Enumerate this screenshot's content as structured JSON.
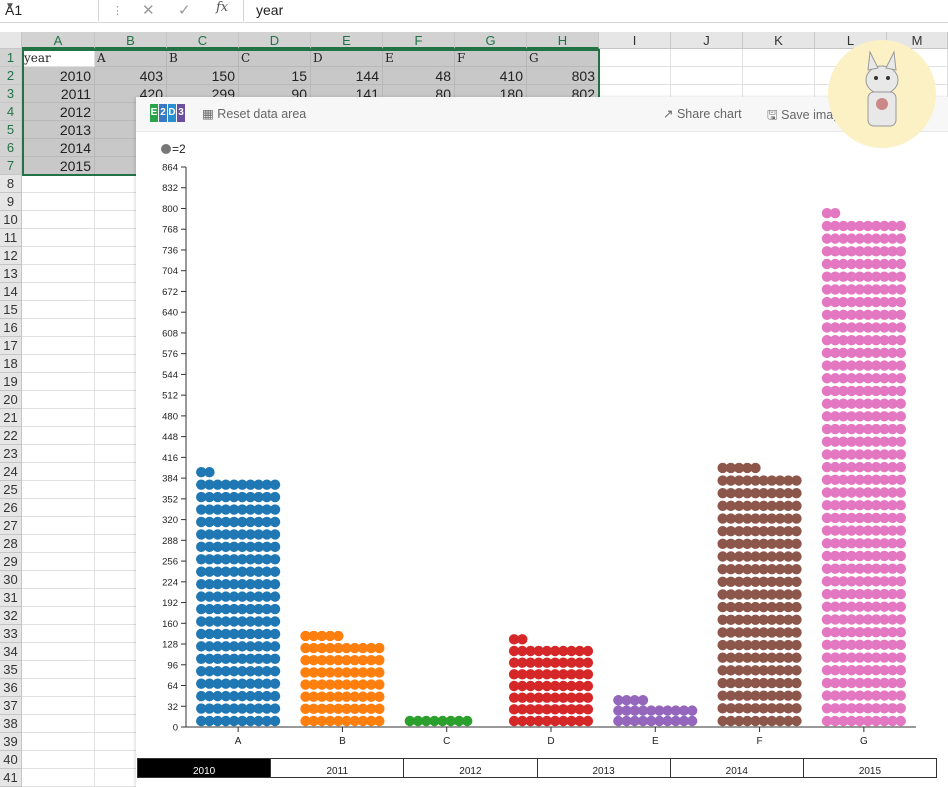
{
  "formula_bar": {
    "name_box": "A1",
    "fx": "fx",
    "value": "year"
  },
  "columns": [
    "A",
    "B",
    "C",
    "D",
    "E",
    "F",
    "G",
    "H",
    "I",
    "J",
    "K",
    "L",
    "M"
  ],
  "rows": [
    "1",
    "2",
    "3",
    "4",
    "5",
    "6",
    "7",
    "8",
    "9",
    "10",
    "11",
    "12",
    "13",
    "14",
    "15",
    "16",
    "17",
    "18",
    "19",
    "20",
    "21",
    "22",
    "23",
    "24",
    "25",
    "26",
    "27",
    "28",
    "29",
    "30",
    "31",
    "32",
    "33",
    "34",
    "35",
    "36",
    "37",
    "38",
    "39",
    "40",
    "41"
  ],
  "sheet": {
    "header_row": [
      "year",
      "A",
      "B",
      "C",
      "D",
      "E",
      "F",
      "G"
    ],
    "data_rows": [
      [
        "2010",
        "403",
        "150",
        "15",
        "144",
        "48",
        "410",
        "803"
      ],
      [
        "2011",
        "420",
        "299",
        "90",
        "141",
        "80",
        "180",
        "802"
      ],
      [
        "2012",
        "",
        "",
        "",
        "",
        "",
        "",
        ""
      ],
      [
        "2013",
        "",
        "",
        "",
        "",
        "",
        "",
        ""
      ],
      [
        "2014",
        "",
        "",
        "",
        "",
        "",
        "",
        ""
      ],
      [
        "2015",
        "",
        "",
        "",
        "",
        "",
        "",
        ""
      ]
    ]
  },
  "chart_window": {
    "logo_letters": [
      "E",
      "2",
      "D",
      "3"
    ],
    "logo_colors": [
      "#2aa34a",
      "#3a78c2",
      "#2a8fd0",
      "#6a4fa0"
    ],
    "reset_label": "Reset data area",
    "share_label": "Share chart",
    "save_label": "Save image",
    "icons": [
      "grid-icon",
      "share-icon",
      "save-icon",
      "home-icon",
      "mascot-icon"
    ]
  },
  "chart_data": {
    "type": "dot-bar",
    "legend": "=2",
    "dot_unit": 2,
    "categories": [
      "A",
      "B",
      "C",
      "D",
      "E",
      "F",
      "G"
    ],
    "values": [
      403,
      150,
      15,
      144,
      48,
      410,
      803
    ],
    "colors": [
      "#1f77b4",
      "#ff7f0e",
      "#2ca02c",
      "#d62728",
      "#9467bd",
      "#8c564b",
      "#e377c2"
    ],
    "yticks": [
      0,
      32,
      64,
      96,
      128,
      160,
      192,
      224,
      256,
      288,
      320,
      352,
      384,
      416,
      448,
      480,
      512,
      544,
      576,
      608,
      640,
      672,
      704,
      736,
      768,
      800,
      832,
      864
    ],
    "ylim": [
      0,
      864
    ]
  },
  "slider": {
    "years": [
      "2010",
      "2011",
      "2012",
      "2013",
      "2014",
      "2015"
    ],
    "active": "2010"
  }
}
